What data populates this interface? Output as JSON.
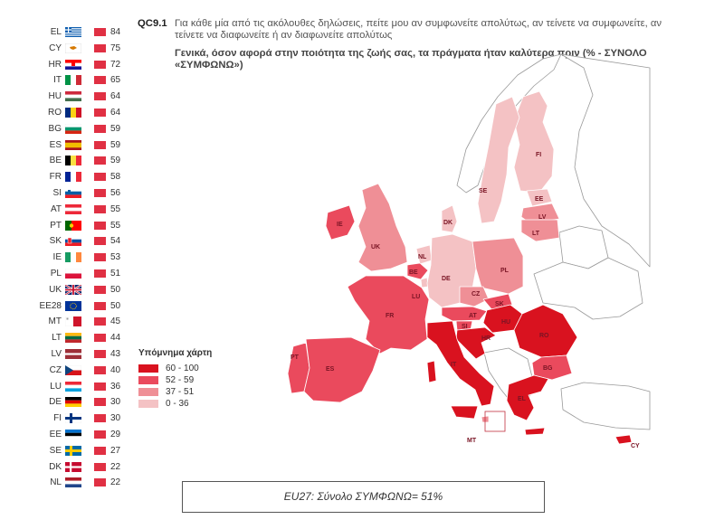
{
  "question": {
    "number": "QC9.1",
    "text": "Για κάθε μία από τις ακόλουθες δηλώσεις, πείτε μου αν συμφωνείτε απολύτως, αν τείνετε να συμφωνείτε, αν τείνετε να διαφωνείτε ή αν διαφωνείτε απολύτως",
    "subtitle": "Γενικά, όσον αφορά στην ποιότητα της ζωής σας, τα πράγματα ήταν καλύτερα πριν (% - ΣΥΝΟΛΟ «ΣΥΜΦΩΝΩ»)"
  },
  "ranking": [
    {
      "code": "EL",
      "value": 84
    },
    {
      "code": "CY",
      "value": 75
    },
    {
      "code": "HR",
      "value": 72
    },
    {
      "code": "IT",
      "value": 65
    },
    {
      "code": "HU",
      "value": 64
    },
    {
      "code": "RO",
      "value": 64
    },
    {
      "code": "BG",
      "value": 59
    },
    {
      "code": "ES",
      "value": 59
    },
    {
      "code": "BE",
      "value": 59
    },
    {
      "code": "FR",
      "value": 58
    },
    {
      "code": "SI",
      "value": 56
    },
    {
      "code": "AT",
      "value": 55
    },
    {
      "code": "PT",
      "value": 55
    },
    {
      "code": "SK",
      "value": 54
    },
    {
      "code": "IE",
      "value": 53
    },
    {
      "code": "PL",
      "value": 51
    },
    {
      "code": "UK",
      "value": 50
    },
    {
      "code": "EE28",
      "value": 50
    },
    {
      "code": "MT",
      "value": 45
    },
    {
      "code": "LT",
      "value": 44
    },
    {
      "code": "LV",
      "value": 43
    },
    {
      "code": "CZ",
      "value": 40
    },
    {
      "code": "LU",
      "value": 36
    },
    {
      "code": "DE",
      "value": 30
    },
    {
      "code": "FI",
      "value": 30
    },
    {
      "code": "EE",
      "value": 29
    },
    {
      "code": "SE",
      "value": 27
    },
    {
      "code": "DK",
      "value": 22
    },
    {
      "code": "NL",
      "value": 22
    }
  ],
  "bar_color": "#e03043",
  "legend": {
    "title": "Υπόμνημα χάρτη",
    "items": [
      {
        "label": "60 - 100",
        "color": "#d9121f"
      },
      {
        "label": "52 - 59",
        "color": "#ea4a5d"
      },
      {
        "label": "37 - 51",
        "color": "#ef8f96"
      },
      {
        "label": "0 - 36",
        "color": "#f4c2c4"
      }
    ]
  },
  "map": {
    "country_labels": [
      "FI",
      "SE",
      "EE",
      "LV",
      "LT",
      "IE",
      "UK",
      "DK",
      "NL",
      "BE",
      "LU",
      "DE",
      "PL",
      "CZ",
      "SK",
      "AT",
      "HU",
      "RO",
      "FR",
      "SI",
      "HR",
      "BG",
      "PT",
      "ES",
      "IT",
      "EL",
      "MT",
      "CY"
    ]
  },
  "footer": {
    "text": "EU27: Σύνολο ΣΥΜΦΩΝΩ= 51%"
  }
}
